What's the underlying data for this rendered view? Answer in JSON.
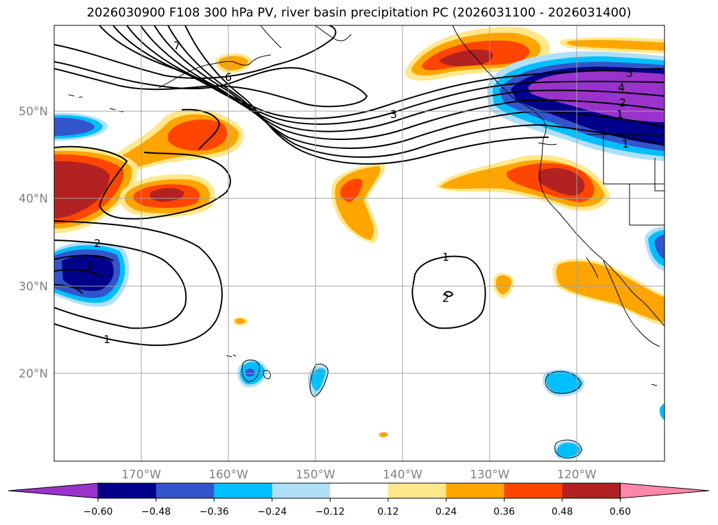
{
  "title": "2026030900 F108 300 hPa PV, river basin precipitation PC (2026031100 - 2026031400)",
  "map": {
    "lat_labels": [
      "50°N",
      "40°N",
      "30°N",
      "20°N"
    ],
    "lon_labels": [
      "170°W",
      "160°W",
      "150°W",
      "140°W",
      "130°W",
      "120°W"
    ],
    "contour_labels": [
      "7",
      "6",
      "3",
      "5",
      "4",
      "2",
      "1",
      "1",
      "2",
      "3",
      "1",
      "1",
      "2"
    ]
  },
  "colorbar": {
    "ticks": [
      "−0.60",
      "−0.48",
      "−0.36",
      "−0.24",
      "−0.12",
      "0.12",
      "0.24",
      "0.36",
      "0.48",
      "0.60"
    ],
    "colors": [
      "#9933cc",
      "#00008b",
      "#3355cc",
      "#00bfff",
      "#b0e0f8",
      "#ffffff",
      "#ffe88c",
      "#ffa500",
      "#ff4500",
      "#b22222",
      "#ff88aa"
    ]
  }
}
